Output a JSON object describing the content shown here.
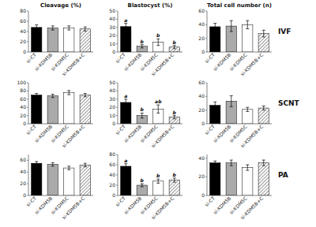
{
  "chart_data": [
    {
      "type": "bar",
      "title": "Cleavage (%)",
      "categories": [
        "si-CT",
        "si-KDM5B",
        "si-KDM5C",
        "si-KDM5B+C"
      ],
      "values": [
        48,
        47,
        47,
        45
      ],
      "errors": [
        5,
        4,
        4,
        4
      ],
      "colors": [
        "black",
        "#aaaaaa",
        "white",
        "white"
      ],
      "ylim": [
        0,
        80
      ],
      "yticks": [
        0,
        20,
        40,
        60,
        80
      ],
      "grid": false
    },
    {
      "type": "bar",
      "title": "Blastocyst (%)",
      "categories": [
        "si-CT",
        "si-KDM5B",
        "si-KDM5C",
        "si-KDM5B+C"
      ],
      "values": [
        31,
        7,
        12,
        6
      ],
      "errors": [
        4,
        2,
        4,
        2
      ],
      "annotations": [
        "a",
        "b",
        "b",
        "b"
      ],
      "colors": [
        "black",
        "#aaaaaa",
        "white",
        "white"
      ],
      "ylim": [
        0,
        50
      ],
      "yticks": [
        0,
        10,
        20,
        30,
        40,
        50
      ],
      "grid": false
    },
    {
      "type": "bar",
      "title": "Total cell number (n)",
      "subtitle": "IVF",
      "categories": [
        "si-CT",
        "si-KDM5B",
        "si-KDM5C",
        "si-KDM5B+C"
      ],
      "values": [
        37,
        38,
        40,
        27
      ],
      "errors": [
        5,
        8,
        6,
        5
      ],
      "colors": [
        "black",
        "#aaaaaa",
        "white",
        "white"
      ],
      "ylim": [
        0,
        60
      ],
      "yticks": [
        0,
        20,
        40,
        60
      ],
      "grid": false
    },
    {
      "type": "bar",
      "categories": [
        "si-CT",
        "si-KDM5B",
        "si-KDM5C",
        "si-KDM5B+C"
      ],
      "values": [
        70,
        68,
        76,
        70
      ],
      "errors": [
        4,
        4,
        5,
        4
      ],
      "colors": [
        "black",
        "#aaaaaa",
        "white",
        "white"
      ],
      "ylim": [
        0,
        100
      ],
      "yticks": [
        0,
        20,
        40,
        60,
        80,
        100
      ],
      "grid": false
    },
    {
      "type": "bar",
      "categories": [
        "si-CT",
        "si-KDM5B",
        "si-KDM5C",
        "si-KDM5B+C"
      ],
      "values": [
        26,
        10,
        18,
        8
      ],
      "errors": [
        4,
        3,
        5,
        2
      ],
      "annotations": [
        "a",
        "b",
        "ab",
        "b"
      ],
      "colors": [
        "black",
        "#aaaaaa",
        "white",
        "white"
      ],
      "ylim": [
        0,
        50
      ],
      "yticks": [
        0,
        10,
        20,
        30,
        40,
        50
      ],
      "grid": false
    },
    {
      "type": "bar",
      "subtitle": "SCNT",
      "categories": [
        "si-CT",
        "si-KDM5B",
        "si-KDM5C",
        "si-KDM5B+C"
      ],
      "values": [
        27,
        33,
        21,
        23
      ],
      "errors": [
        5,
        8,
        3,
        3
      ],
      "colors": [
        "black",
        "#aaaaaa",
        "white",
        "white"
      ],
      "ylim": [
        0,
        60
      ],
      "yticks": [
        0,
        20,
        40,
        60
      ],
      "grid": false
    },
    {
      "type": "bar",
      "categories": [
        "si-CT",
        "si-KDM5B",
        "si-KDM5C",
        "si-KDM5B+C"
      ],
      "values": [
        55,
        53,
        47,
        52
      ],
      "errors": [
        3,
        3,
        3,
        3
      ],
      "colors": [
        "black",
        "#aaaaaa",
        "white",
        "white"
      ],
      "ylim": [
        0,
        70
      ],
      "yticks": [
        0,
        20,
        40,
        60
      ],
      "grid": false
    },
    {
      "type": "bar",
      "categories": [
        "si-CT",
        "si-KDM5B",
        "si-KDM5C",
        "si-KDM5B+C"
      ],
      "values": [
        57,
        20,
        28,
        30
      ],
      "errors": [
        5,
        3,
        4,
        4
      ],
      "annotations": [
        "a",
        "b",
        "b",
        "b"
      ],
      "colors": [
        "black",
        "#aaaaaa",
        "white",
        "white"
      ],
      "ylim": [
        0,
        80
      ],
      "yticks": [
        0,
        20,
        40,
        60,
        80
      ],
      "grid": false
    },
    {
      "type": "bar",
      "subtitle": "PA",
      "categories": [
        "si-CT",
        "si-KDM5B",
        "si-KDM5C",
        "si-KDM5B+C"
      ],
      "values": [
        35,
        35,
        30,
        35
      ],
      "errors": [
        2,
        3,
        3,
        3
      ],
      "colors": [
        "black",
        "#aaaaaa",
        "white",
        "white"
      ],
      "ylim": [
        0,
        44
      ],
      "yticks": [
        0,
        20,
        40
      ],
      "grid": false
    }
  ]
}
